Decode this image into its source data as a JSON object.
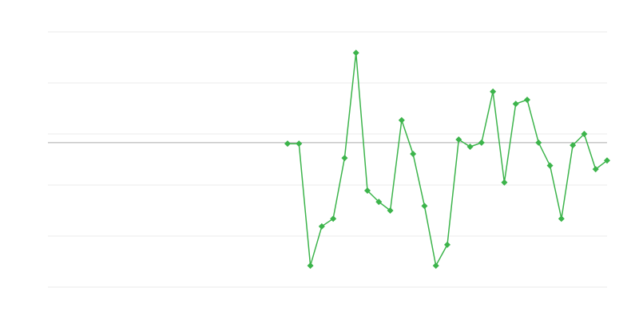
{
  "chart_data": {
    "type": "line",
    "title": "",
    "xlabel": "",
    "ylabel": "",
    "x_count": 50,
    "ylim": [
      0,
      5
    ],
    "yticks": [
      0,
      1,
      2,
      3,
      4,
      5
    ],
    "grid": true,
    "reference_line": 2.83,
    "legend": "none",
    "series": [
      {
        "color": "#3cb44b",
        "marker": "diamond",
        "values": [
          null,
          null,
          null,
          null,
          null,
          null,
          null,
          null,
          null,
          null,
          null,
          null,
          null,
          null,
          null,
          null,
          null,
          null,
          null,
          null,
          null,
          2.81,
          2.81,
          0.42,
          1.19,
          1.34,
          2.53,
          4.59,
          1.89,
          1.67,
          1.5,
          3.27,
          2.61,
          1.59,
          0.42,
          0.83,
          2.89,
          2.75,
          2.83,
          3.83,
          2.05,
          3.59,
          3.67,
          2.83,
          2.38,
          1.34,
          2.78,
          3.0,
          2.31,
          2.48
        ]
      }
    ],
    "colors": {
      "grid": "#ebebeb",
      "reference": "#aaaaaa"
    }
  }
}
